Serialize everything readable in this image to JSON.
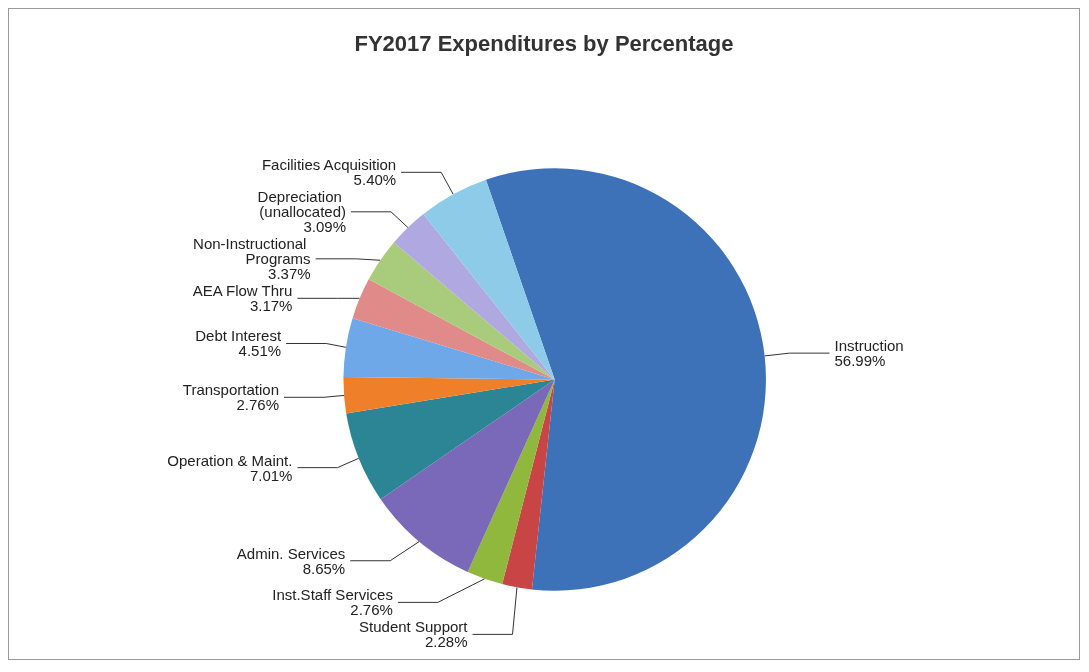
{
  "chart_data": {
    "type": "pie",
    "title": "FY2017 Expenditures by Percentage",
    "categories": [
      "Instruction",
      "Student Support",
      "Inst.Staff Services",
      "Admin. Services",
      "Operation & Maint.",
      "Transportation",
      "Debt Interest",
      "AEA Flow Thru",
      "Non-Instructional Programs",
      "Depreciation (unallocated)",
      "Facilities Acquisition"
    ],
    "values": [
      56.99,
      2.28,
      2.76,
      8.65,
      7.01,
      2.76,
      4.51,
      3.17,
      3.37,
      3.09,
      5.4
    ],
    "value_labels": [
      "56.99%",
      "2.28%",
      "2.76%",
      "8.65%",
      "7.01%",
      "2.76%",
      "4.51%",
      "3.17%",
      "3.37%",
      "3.09%",
      "5.40%"
    ],
    "colors": [
      "#3d72b8",
      "#c94444",
      "#8fb83c",
      "#7a68b8",
      "#2b8595",
      "#f07f2a",
      "#6fa8e8",
      "#e08a8a",
      "#a8cc7c",
      "#b0a8e0",
      "#8ecbe8"
    ],
    "legend": false
  }
}
